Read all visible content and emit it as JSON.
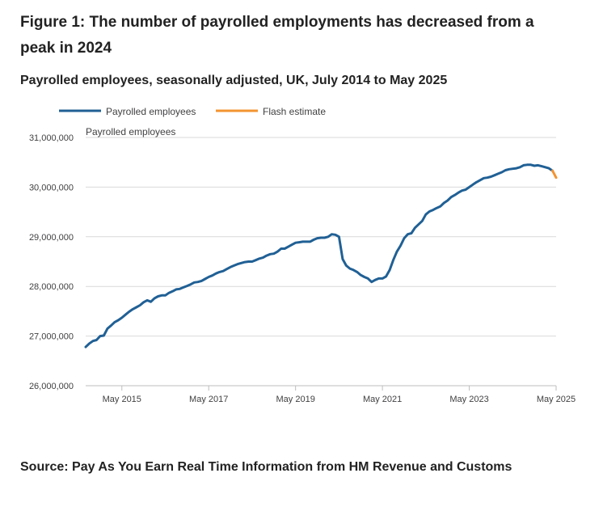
{
  "figure": {
    "title": "Figure 1: The number of payrolled employments has decreased from a peak in 2024",
    "subtitle": "Payrolled employees, seasonally adjusted, UK, July 2014 to May 2025",
    "source": "Source: Pay As You Earn Real Time Information from HM Revenue and Customs"
  },
  "colors": {
    "payrolled": "#206095",
    "flash": "#f39431",
    "grid": "#d9d9d9",
    "axis": "#bebebe",
    "text": "#222222",
    "tick_text": "#414042"
  },
  "chart_data": {
    "type": "line",
    "title": "Payrolled employees, seasonally adjusted, UK, July 2014 to May 2025",
    "ylabel": "Payrolled employees",
    "xlabel": "",
    "ylim": [
      26000000,
      31000000
    ],
    "y_ticks": [
      26000000,
      27000000,
      28000000,
      29000000,
      30000000,
      31000000
    ],
    "y_tick_labels": [
      "26,000,000",
      "27,000,000",
      "28,000,000",
      "29,000,000",
      "30,000,000",
      "31,000,000"
    ],
    "xlim": [
      "2014-07",
      "2025-05"
    ],
    "x_ticks": [
      "2015-05",
      "2017-05",
      "2019-05",
      "2021-05",
      "2023-05",
      "2025-05"
    ],
    "x_tick_labels": [
      "May 2015",
      "May 2017",
      "May 2019",
      "May 2021",
      "May 2023",
      "May 2025"
    ],
    "grid": true,
    "legend_position": "top-left",
    "series": [
      {
        "name": "Payrolled employees",
        "color": "#206095",
        "points": [
          [
            "2014-07",
            26780000
          ],
          [
            "2014-08",
            26850000
          ],
          [
            "2014-09",
            26900000
          ],
          [
            "2014-10",
            26920000
          ],
          [
            "2014-11",
            27000000
          ],
          [
            "2014-12",
            27010000
          ],
          [
            "2015-01",
            27150000
          ],
          [
            "2015-02",
            27210000
          ],
          [
            "2015-03",
            27280000
          ],
          [
            "2015-04",
            27320000
          ],
          [
            "2015-05",
            27370000
          ],
          [
            "2015-06",
            27430000
          ],
          [
            "2015-07",
            27490000
          ],
          [
            "2015-08",
            27540000
          ],
          [
            "2015-09",
            27580000
          ],
          [
            "2015-10",
            27620000
          ],
          [
            "2015-11",
            27680000
          ],
          [
            "2015-12",
            27720000
          ],
          [
            "2016-01",
            27690000
          ],
          [
            "2016-02",
            27760000
          ],
          [
            "2016-03",
            27800000
          ],
          [
            "2016-04",
            27820000
          ],
          [
            "2016-05",
            27820000
          ],
          [
            "2016-06",
            27870000
          ],
          [
            "2016-07",
            27900000
          ],
          [
            "2016-08",
            27940000
          ],
          [
            "2016-09",
            27950000
          ],
          [
            "2016-10",
            27980000
          ],
          [
            "2016-11",
            28010000
          ],
          [
            "2016-12",
            28040000
          ],
          [
            "2017-01",
            28080000
          ],
          [
            "2017-02",
            28090000
          ],
          [
            "2017-03",
            28110000
          ],
          [
            "2017-04",
            28150000
          ],
          [
            "2017-05",
            28190000
          ],
          [
            "2017-06",
            28220000
          ],
          [
            "2017-07",
            28260000
          ],
          [
            "2017-08",
            28290000
          ],
          [
            "2017-09",
            28310000
          ],
          [
            "2017-10",
            28350000
          ],
          [
            "2017-11",
            28390000
          ],
          [
            "2017-12",
            28420000
          ],
          [
            "2018-01",
            28450000
          ],
          [
            "2018-02",
            28470000
          ],
          [
            "2018-03",
            28490000
          ],
          [
            "2018-04",
            28500000
          ],
          [
            "2018-05",
            28500000
          ],
          [
            "2018-06",
            28530000
          ],
          [
            "2018-07",
            28560000
          ],
          [
            "2018-08",
            28580000
          ],
          [
            "2018-09",
            28620000
          ],
          [
            "2018-10",
            28650000
          ],
          [
            "2018-11",
            28660000
          ],
          [
            "2018-12",
            28700000
          ],
          [
            "2019-01",
            28760000
          ],
          [
            "2019-02",
            28760000
          ],
          [
            "2019-03",
            28800000
          ],
          [
            "2019-04",
            28840000
          ],
          [
            "2019-05",
            28880000
          ],
          [
            "2019-06",
            28890000
          ],
          [
            "2019-07",
            28900000
          ],
          [
            "2019-08",
            28900000
          ],
          [
            "2019-09",
            28900000
          ],
          [
            "2019-10",
            28940000
          ],
          [
            "2019-11",
            28970000
          ],
          [
            "2019-12",
            28980000
          ],
          [
            "2020-01",
            28980000
          ],
          [
            "2020-02",
            29000000
          ],
          [
            "2020-03",
            29050000
          ],
          [
            "2020-04",
            29040000
          ],
          [
            "2020-05",
            29000000
          ],
          [
            "2020-06",
            28550000
          ],
          [
            "2020-07",
            28420000
          ],
          [
            "2020-08",
            28360000
          ],
          [
            "2020-09",
            28330000
          ],
          [
            "2020-10",
            28290000
          ],
          [
            "2020-11",
            28230000
          ],
          [
            "2020-12",
            28190000
          ],
          [
            "2021-01",
            28160000
          ],
          [
            "2021-02",
            28090000
          ],
          [
            "2021-03",
            28130000
          ],
          [
            "2021-04",
            28160000
          ],
          [
            "2021-05",
            28160000
          ],
          [
            "2021-06",
            28200000
          ],
          [
            "2021-07",
            28330000
          ],
          [
            "2021-08",
            28530000
          ],
          [
            "2021-09",
            28700000
          ],
          [
            "2021-10",
            28820000
          ],
          [
            "2021-11",
            28970000
          ],
          [
            "2021-12",
            29050000
          ],
          [
            "2022-01",
            29070000
          ],
          [
            "2022-02",
            29180000
          ],
          [
            "2022-03",
            29250000
          ],
          [
            "2022-04",
            29320000
          ],
          [
            "2022-05",
            29450000
          ],
          [
            "2022-06",
            29510000
          ],
          [
            "2022-07",
            29540000
          ],
          [
            "2022-08",
            29580000
          ],
          [
            "2022-09",
            29610000
          ],
          [
            "2022-10",
            29680000
          ],
          [
            "2022-11",
            29730000
          ],
          [
            "2022-12",
            29800000
          ],
          [
            "2023-01",
            29840000
          ],
          [
            "2023-02",
            29890000
          ],
          [
            "2023-03",
            29930000
          ],
          [
            "2023-04",
            29950000
          ],
          [
            "2023-05",
            30000000
          ],
          [
            "2023-06",
            30050000
          ],
          [
            "2023-07",
            30100000
          ],
          [
            "2023-08",
            30140000
          ],
          [
            "2023-09",
            30180000
          ],
          [
            "2023-10",
            30190000
          ],
          [
            "2023-11",
            30210000
          ],
          [
            "2023-12",
            30240000
          ],
          [
            "2024-01",
            30270000
          ],
          [
            "2024-02",
            30300000
          ],
          [
            "2024-03",
            30340000
          ],
          [
            "2024-04",
            30360000
          ],
          [
            "2024-05",
            30370000
          ],
          [
            "2024-06",
            30380000
          ],
          [
            "2024-07",
            30400000
          ],
          [
            "2024-08",
            30440000
          ],
          [
            "2024-09",
            30450000
          ],
          [
            "2024-10",
            30450000
          ],
          [
            "2024-11",
            30430000
          ],
          [
            "2024-12",
            30440000
          ],
          [
            "2025-01",
            30420000
          ],
          [
            "2025-02",
            30400000
          ],
          [
            "2025-03",
            30380000
          ],
          [
            "2025-04",
            30330000
          ]
        ]
      },
      {
        "name": "Flash estimate",
        "color": "#f39431",
        "points": [
          [
            "2025-04",
            30330000
          ],
          [
            "2025-05",
            30190000
          ]
        ]
      }
    ]
  }
}
